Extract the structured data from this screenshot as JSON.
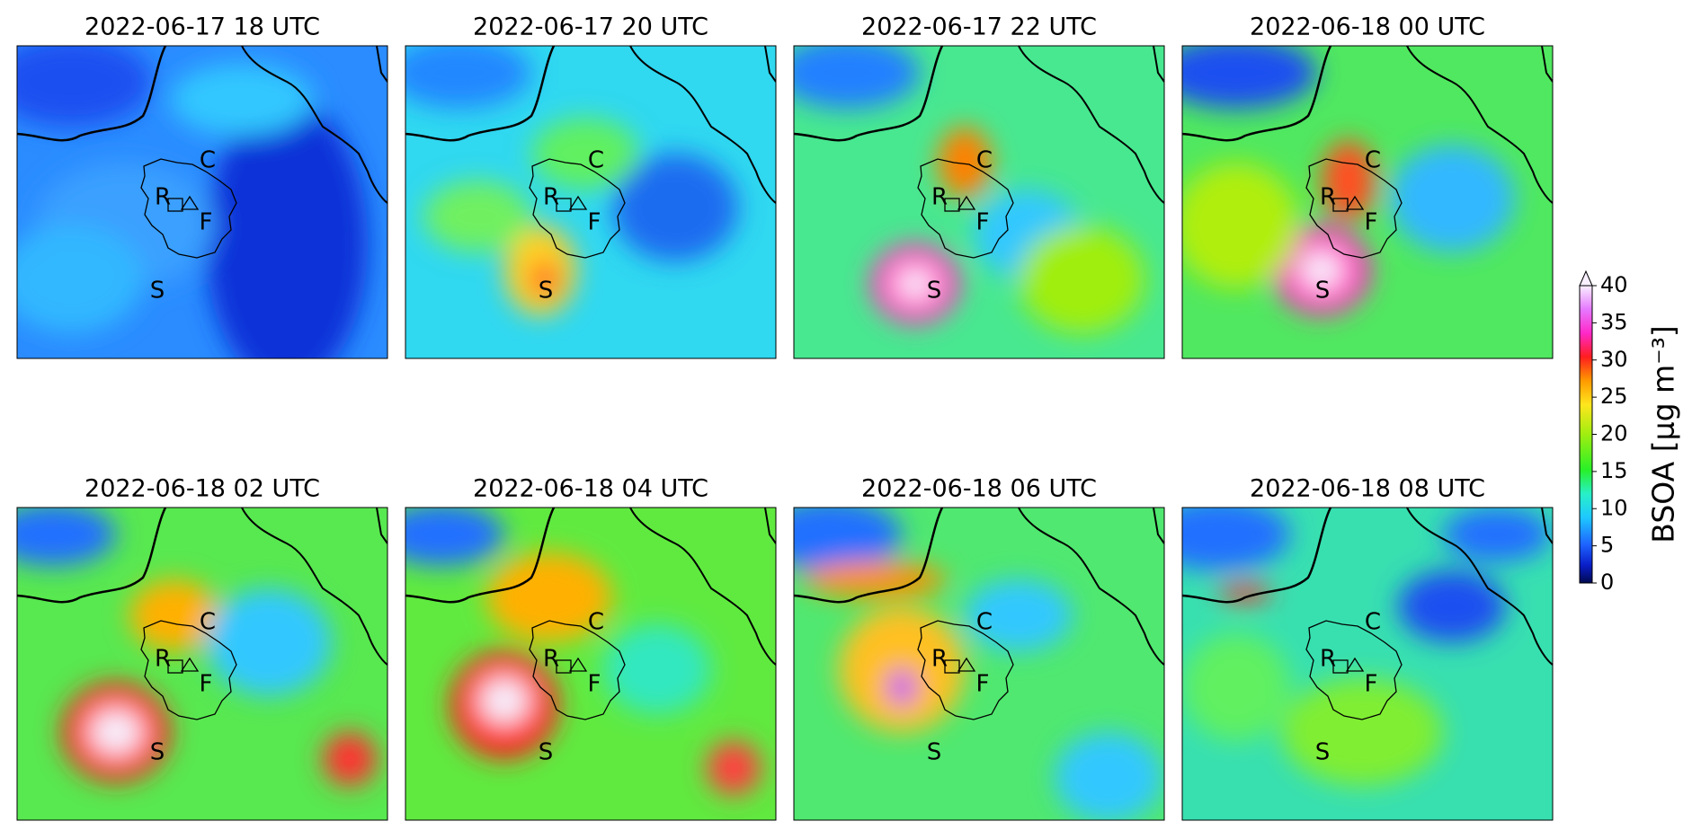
{
  "chart_data": {
    "type": "map-panels",
    "panels": [
      {
        "title": "2022-06-17 18 UTC"
      },
      {
        "title": "2022-06-17 20 UTC"
      },
      {
        "title": "2022-06-17 22 UTC"
      },
      {
        "title": "2022-06-18 00 UTC"
      },
      {
        "title": "2022-06-18 02 UTC"
      },
      {
        "title": "2022-06-18 04 UTC"
      },
      {
        "title": "2022-06-18 06 UTC"
      },
      {
        "title": "2022-06-18 08 UTC"
      }
    ],
    "site_labels": [
      "C",
      "R",
      "F",
      "S"
    ],
    "colorbar": {
      "label": "BSOA [µg m⁻³]",
      "lim": [
        0,
        40
      ],
      "ticks": [
        0,
        5,
        10,
        15,
        20,
        25,
        30,
        35,
        40
      ],
      "extend": "max"
    }
  }
}
